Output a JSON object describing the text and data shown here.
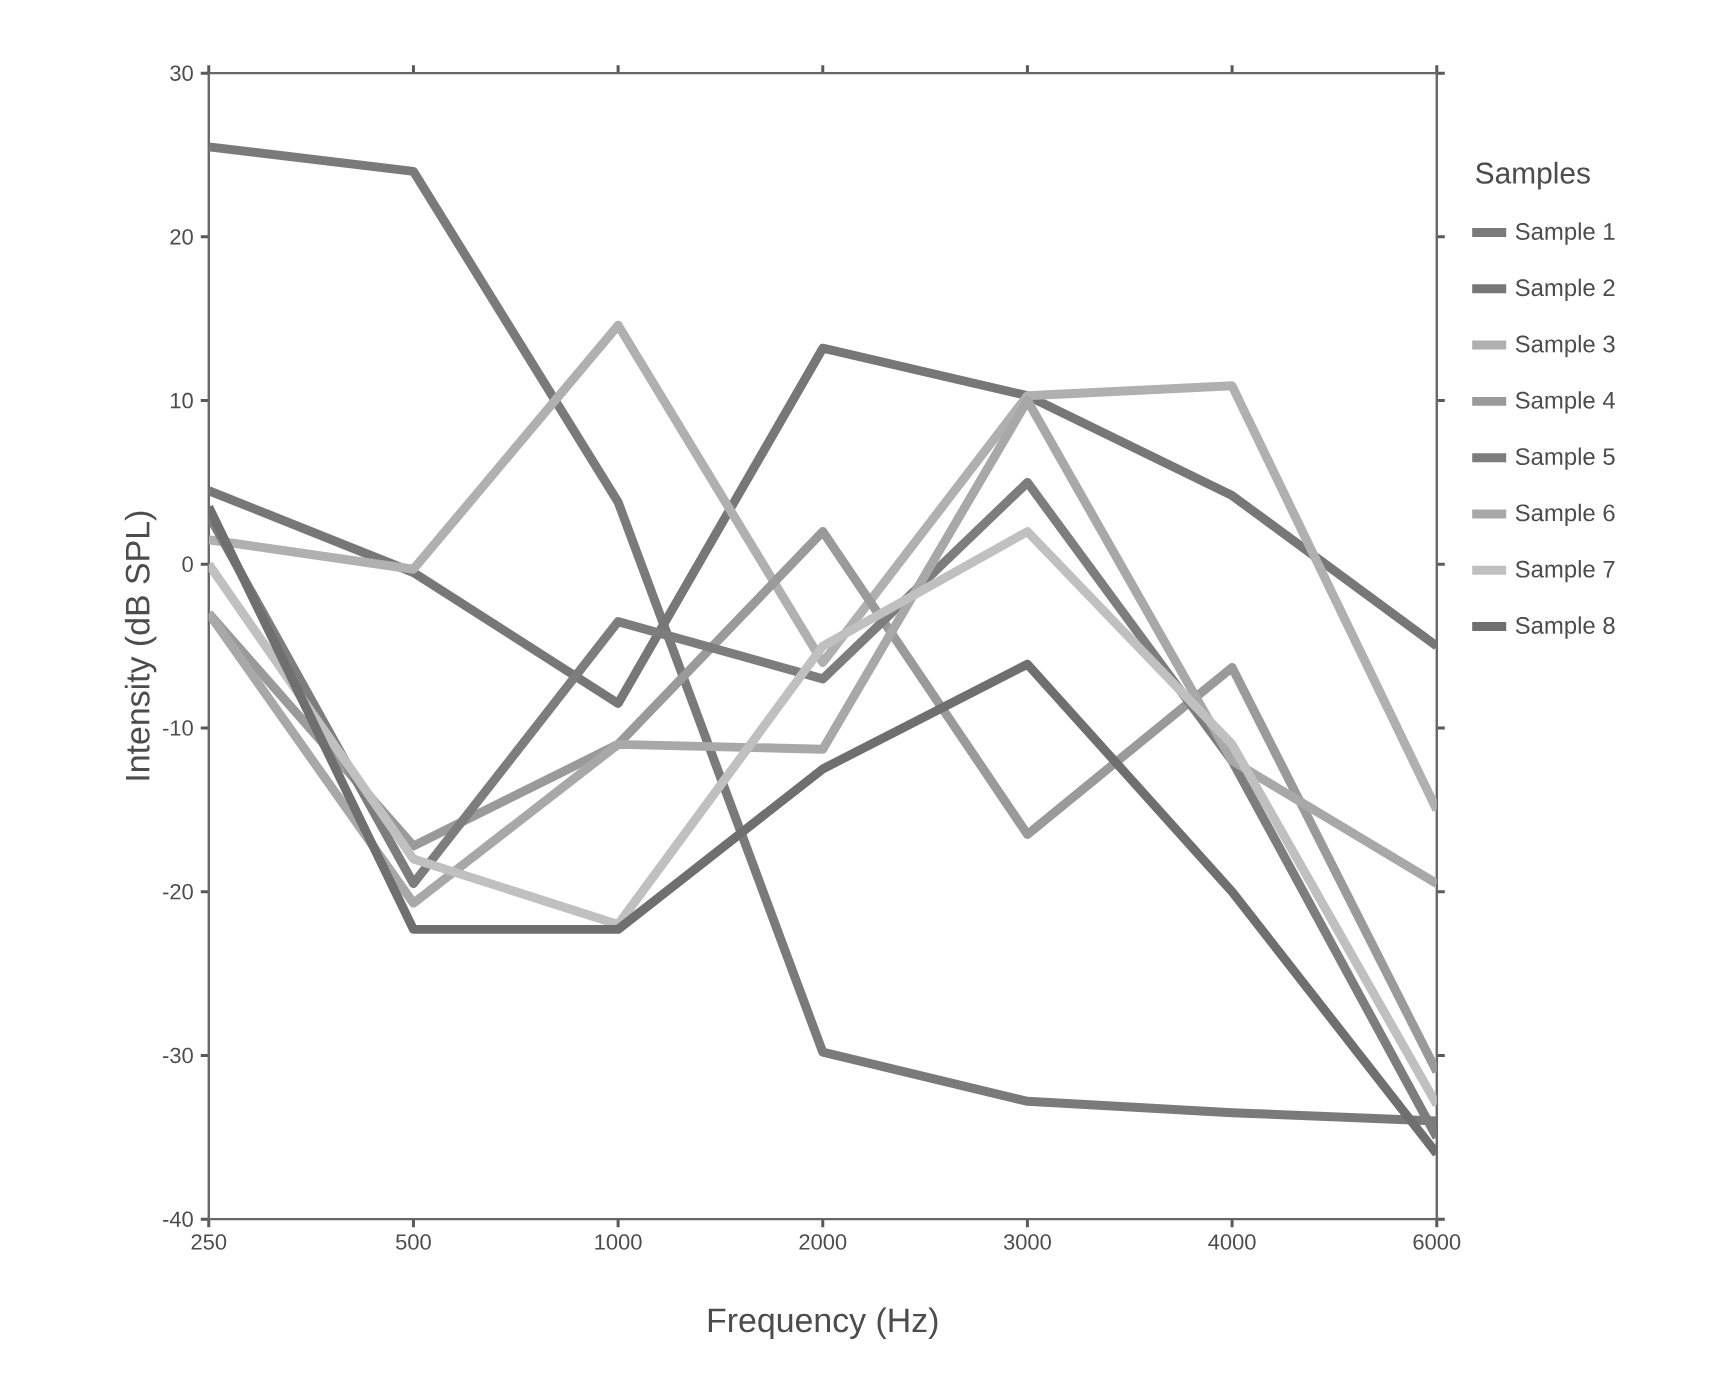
{
  "chart_data": {
    "type": "line",
    "xlabel": "Frequency (Hz)",
    "ylabel": "Intensity (dB SPL)",
    "legend_title": "Samples",
    "categories": [
      "250",
      "500",
      "1000",
      "2000",
      "3000",
      "4000",
      "6000"
    ],
    "series": [
      {
        "name": "Sample 1",
        "color": "#7a7a7a",
        "values": [
          25.5,
          24,
          3.8,
          -29.8,
          -32.8,
          -33.5,
          -34
        ]
      },
      {
        "name": "Sample 2",
        "color": "#777777",
        "values": [
          4.5,
          -0.5,
          -8.5,
          13.2,
          10.3,
          4.2,
          -5
        ]
      },
      {
        "name": "Sample 3",
        "color": "#b0b0b0",
        "values": [
          1.5,
          -0.3,
          14.6,
          -6,
          10.3,
          10.9,
          -15
        ]
      },
      {
        "name": "Sample 4",
        "color": "#9a9a9a",
        "values": [
          -3,
          -17.2,
          -11,
          2,
          -16.5,
          -6.3,
          -31
        ]
      },
      {
        "name": "Sample 5",
        "color": "#7d7d7d",
        "values": [
          3,
          -19.5,
          -3.5,
          -7,
          5,
          -12,
          -35
        ]
      },
      {
        "name": "Sample 6",
        "color": "#a8a8a8",
        "values": [
          -3,
          -20.7,
          -11,
          -11.3,
          10,
          -12,
          -19.5
        ]
      },
      {
        "name": "Sample 7",
        "color": "#c0c0c0",
        "values": [
          0,
          -18,
          -22,
          -5,
          2,
          -11,
          -33
        ]
      },
      {
        "name": "Sample 8",
        "color": "#6f6f6f",
        "values": [
          3.5,
          -22.3,
          -22.3,
          -12.5,
          -6.1,
          -20,
          -36
        ]
      }
    ],
    "ylim": [
      -40,
      30
    ],
    "yticks": [
      -40,
      -30,
      -20,
      -10,
      0,
      10,
      20,
      30
    ],
    "grid": false,
    "legend": "right",
    "marker": "none",
    "line_style": "solid"
  }
}
